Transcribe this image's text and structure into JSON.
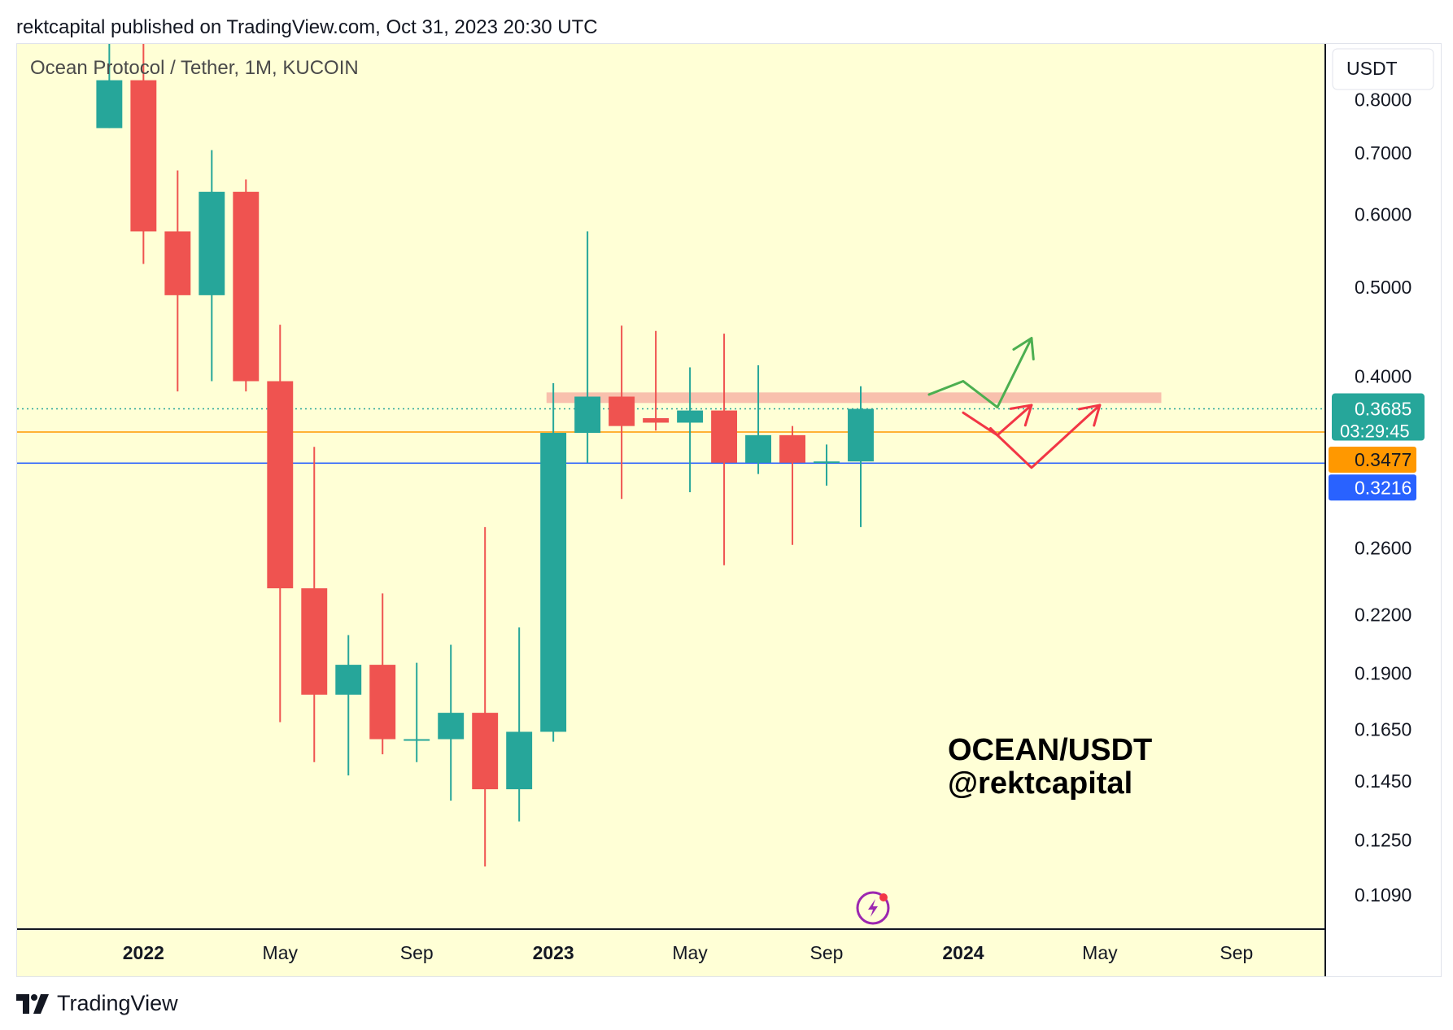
{
  "header": {
    "published_line": "rektcapital published on TradingView.com, Oct 31, 2023 20:30 UTC"
  },
  "footer": {
    "brand": "TradingView"
  },
  "chart_data": {
    "type": "candlestick",
    "title": "Ocean Protocol / Tether, 1M, KUCOIN",
    "watermark": [
      "OCEAN/USDT",
      "@rektcapital"
    ],
    "currency_button": "USDT",
    "scale": "log",
    "ylim": [
      0.1,
      0.92
    ],
    "y_ticks": [
      {
        "value": 0.8,
        "label": "0.8000"
      },
      {
        "value": 0.7,
        "label": "0.7000"
      },
      {
        "value": 0.6,
        "label": "0.6000"
      },
      {
        "value": 0.5,
        "label": "0.5000"
      },
      {
        "value": 0.4,
        "label": "0.4000"
      },
      {
        "value": 0.26,
        "label": "0.2600"
      },
      {
        "value": 0.22,
        "label": "0.2200"
      },
      {
        "value": 0.19,
        "label": "0.1900"
      },
      {
        "value": 0.165,
        "label": "0.1650"
      },
      {
        "value": 0.145,
        "label": "0.1450"
      },
      {
        "value": 0.125,
        "label": "0.1250"
      },
      {
        "value": 0.109,
        "label": "0.1090"
      }
    ],
    "x_ticks": [
      {
        "index": 1,
        "label": "2022",
        "bold": true
      },
      {
        "index": 5,
        "label": "May",
        "bold": false
      },
      {
        "index": 9,
        "label": "Sep",
        "bold": false
      },
      {
        "index": 13,
        "label": "2023",
        "bold": true
      },
      {
        "index": 17,
        "label": "May",
        "bold": false
      },
      {
        "index": 21,
        "label": "Sep",
        "bold": false
      },
      {
        "index": 25,
        "label": "2024",
        "bold": true
      },
      {
        "index": 29,
        "label": "May",
        "bold": false
      },
      {
        "index": 33,
        "label": "Sep",
        "bold": false
      }
    ],
    "x_range": [
      -2.7,
      35.6
    ],
    "candles": [
      {
        "month": "2021-11",
        "open": 0.745,
        "high": 0.95,
        "low": 0.745,
        "close": 0.84
      },
      {
        "month": "2021-12",
        "open": 0.84,
        "high": 0.95,
        "low": 0.53,
        "close": 0.575
      },
      {
        "month": "2022-01",
        "open": 0.575,
        "high": 0.67,
        "low": 0.385,
        "close": 0.49
      },
      {
        "month": "2022-02",
        "open": 0.49,
        "high": 0.705,
        "low": 0.395,
        "close": 0.635
      },
      {
        "month": "2022-03",
        "open": 0.635,
        "high": 0.655,
        "low": 0.385,
        "close": 0.395
      },
      {
        "month": "2022-04",
        "open": 0.395,
        "high": 0.455,
        "low": 0.168,
        "close": 0.235
      },
      {
        "month": "2022-05",
        "open": 0.235,
        "high": 0.335,
        "low": 0.152,
        "close": 0.18
      },
      {
        "month": "2022-06",
        "open": 0.18,
        "high": 0.209,
        "low": 0.147,
        "close": 0.194
      },
      {
        "month": "2022-07",
        "open": 0.194,
        "high": 0.232,
        "low": 0.155,
        "close": 0.161
      },
      {
        "month": "2022-08",
        "open": 0.161,
        "high": 0.195,
        "low": 0.152,
        "close": 0.161
      },
      {
        "month": "2022-09",
        "open": 0.161,
        "high": 0.204,
        "low": 0.138,
        "close": 0.172
      },
      {
        "month": "2022-10",
        "open": 0.172,
        "high": 0.274,
        "low": 0.117,
        "close": 0.142
      },
      {
        "month": "2022-11",
        "open": 0.142,
        "high": 0.213,
        "low": 0.131,
        "close": 0.164
      },
      {
        "month": "2022-12",
        "open": 0.164,
        "high": 0.393,
        "low": 0.16,
        "close": 0.347
      },
      {
        "month": "2023-01",
        "open": 0.347,
        "high": 0.575,
        "low": 0.322,
        "close": 0.38
      },
      {
        "month": "2023-02",
        "open": 0.38,
        "high": 0.454,
        "low": 0.294,
        "close": 0.353
      },
      {
        "month": "2023-03",
        "open": 0.36,
        "high": 0.448,
        "low": 0.349,
        "close": 0.356
      },
      {
        "month": "2023-04",
        "open": 0.356,
        "high": 0.409,
        "low": 0.299,
        "close": 0.367
      },
      {
        "month": "2023-05",
        "open": 0.367,
        "high": 0.445,
        "low": 0.249,
        "close": 0.322
      },
      {
        "month": "2023-06",
        "open": 0.322,
        "high": 0.411,
        "low": 0.313,
        "close": 0.345
      },
      {
        "month": "2023-07",
        "open": 0.345,
        "high": 0.353,
        "low": 0.262,
        "close": 0.322
      },
      {
        "month": "2023-08",
        "open": 0.322,
        "high": 0.337,
        "low": 0.304,
        "close": 0.323
      },
      {
        "month": "2023-09",
        "open": 0.323,
        "high": 0.39,
        "low": 0.274,
        "close": 0.3685
      }
    ],
    "colors": {
      "up": "#26a69a",
      "down": "#ef5350",
      "background": "#ffffd6",
      "resistance_zone": "#f7b9a8",
      "last_price": "#26a69a",
      "orange_line": "#ff9800",
      "blue_line": "#2962ff",
      "green_arrow": "#4caf50",
      "red_arrow": "#f23645"
    },
    "lines": {
      "last_price": 0.3685,
      "orange_level": 0.3477,
      "blue_level": 0.3216,
      "resistance_zone": [
        0.374,
        0.384
      ]
    },
    "price_labels": {
      "last_price": "0.3685",
      "countdown": "03:29:45",
      "orange": "0.3477",
      "blue": "0.3216"
    },
    "annotations": {
      "green_path": [
        [
          24.0,
          0.382
        ],
        [
          25.0,
          0.395
        ],
        [
          26.0,
          0.37
        ],
        [
          27.0,
          0.44
        ]
      ],
      "red_path_1": [
        [
          25.0,
          0.365
        ],
        [
          26.0,
          0.345
        ],
        [
          27.0,
          0.372
        ]
      ],
      "red_stub": [
        [
          25.8,
          0.351
        ],
        [
          26.0,
          0.345
        ]
      ],
      "red_path_2": [
        [
          26.0,
          0.345
        ],
        [
          27.0,
          0.318
        ],
        [
          29.0,
          0.372
        ]
      ]
    }
  }
}
